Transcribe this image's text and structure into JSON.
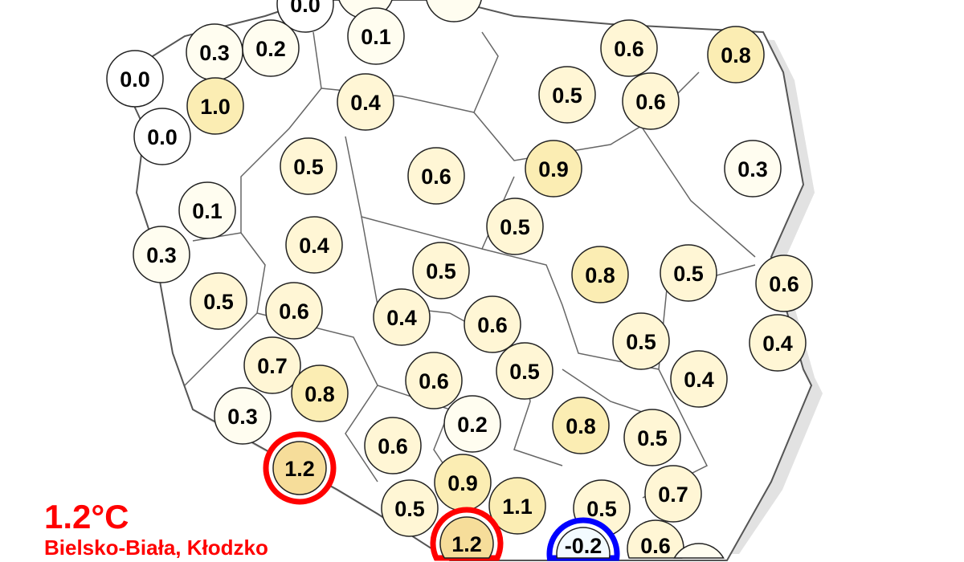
{
  "extreme": {
    "temperature": "1.2°C",
    "stations": "Bielsko-Biała, Kłodzko"
  },
  "colors": {
    "max_ring": "#ff0000",
    "min_ring": "#0000ff",
    "text_highlight": "#ff0000",
    "fill_zero": "#ffffff",
    "fill_low": "#fffdf0",
    "fill_mid": "#fff6d5",
    "fill_high": "#fbedb3",
    "fill_max": "#f6dd9a",
    "fill_negative": "#f3fbff"
  },
  "stations": [
    {
      "value": "0.0"
    },
    {
      "value": ""
    },
    {
      "value": "0.1"
    },
    {
      "value": ""
    },
    {
      "value": "0.2"
    },
    {
      "value": "0.3"
    },
    {
      "value": "0.0"
    },
    {
      "value": "1.0"
    },
    {
      "value": "0.0"
    },
    {
      "value": "0.4"
    },
    {
      "value": "0.6"
    },
    {
      "value": "0.8"
    },
    {
      "value": "0.5"
    },
    {
      "value": "0.6"
    },
    {
      "value": "0.5"
    },
    {
      "value": "0.6"
    },
    {
      "value": "0.9"
    },
    {
      "value": "0.3"
    },
    {
      "value": "0.1"
    },
    {
      "value": "0.3"
    },
    {
      "value": "0.4"
    },
    {
      "value": "0.5"
    },
    {
      "value": "0.5"
    },
    {
      "value": "0.8"
    },
    {
      "value": "0.5"
    },
    {
      "value": "0.6"
    },
    {
      "value": "0.5"
    },
    {
      "value": "0.6"
    },
    {
      "value": "0.4"
    },
    {
      "value": "0.6"
    },
    {
      "value": "0.5"
    },
    {
      "value": "0.4"
    },
    {
      "value": "0.7"
    },
    {
      "value": "0.5"
    },
    {
      "value": "0.6"
    },
    {
      "value": "0.4"
    },
    {
      "value": "0.8"
    },
    {
      "value": "0.3"
    },
    {
      "value": "0.2"
    },
    {
      "value": "0.8"
    },
    {
      "value": "0.5"
    },
    {
      "value": "0.6"
    },
    {
      "value": "1.2",
      "extreme": "max"
    },
    {
      "value": "0.9"
    },
    {
      "value": "1.1"
    },
    {
      "value": "0.7"
    },
    {
      "value": "0.5"
    },
    {
      "value": "0.5"
    },
    {
      "value": "1.2",
      "extreme": "max"
    },
    {
      "value": "-0.2",
      "extreme": "min"
    },
    {
      "value": "0.6"
    },
    {
      "value": ""
    }
  ]
}
